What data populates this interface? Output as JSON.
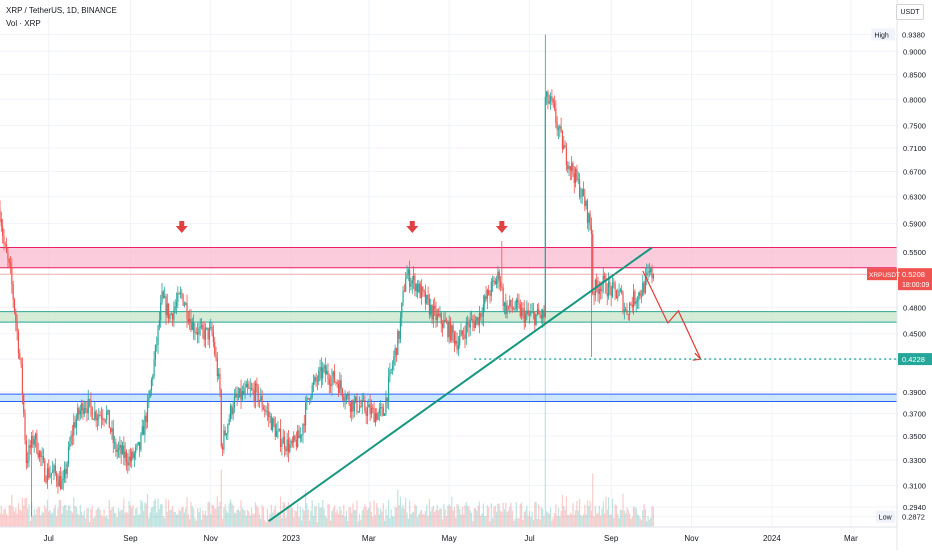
{
  "header": {
    "symbol_line": "XRP / TetherUS, 1D, BINANCE",
    "volume_line": "Vol · XRP"
  },
  "currency_button": "USDT",
  "colors": {
    "up": "#26a69a",
    "down": "#ef5350",
    "resistance_fill": "#f8bbd0",
    "resistance_line": "#e91e63",
    "support_fill": "#c8e6c9",
    "support_line": "#26a69a",
    "blue_zone": "#bbdefb",
    "blue_line": "#2962ff",
    "trendline": "#14967f",
    "arrow": "#e53935",
    "price_badge": "#ef5350",
    "target_badge": "#26a69a"
  },
  "chart_data": {
    "type": "candlestick",
    "y_scale": "log",
    "ylim": [
      0.28,
      0.96
    ],
    "y_ticks": [
      "0.9380",
      "0.9000",
      "0.8500",
      "0.8000",
      "0.7500",
      "0.7100",
      "0.6700",
      "0.6300",
      "0.5900",
      "0.5500",
      "0.5208",
      "0.4800",
      "0.4500",
      "0.4228",
      "0.3900",
      "0.3700",
      "0.3500",
      "0.3300",
      "0.3100",
      "0.2940",
      "0.2872"
    ],
    "x_ticks": [
      "Jul",
      "Sep",
      "Nov",
      "2023",
      "Mar",
      "May",
      "Jul",
      "Sep",
      "Nov",
      "2024",
      "Mar"
    ],
    "x_range": [
      "2022-05-25",
      "2024-04-05"
    ],
    "tick_dates": [
      "2022-07-01",
      "2022-09-01",
      "2022-11-01",
      "2023-01-01",
      "2023-03-01",
      "2023-05-01",
      "2023-07-01",
      "2023-09-01",
      "2023-11-01",
      "2024-01-01",
      "2024-03-01"
    ],
    "high_label": "High",
    "high_value": "0.9380",
    "low_label": "Low",
    "low_value": "0.2872",
    "current_symbol": "XRPUSDT",
    "current_price": "0.5208",
    "countdown": "18:00:09",
    "target_price": "0.4228",
    "zones": [
      {
        "name": "resistance",
        "top": 0.556,
        "bottom": 0.529
      },
      {
        "name": "support",
        "top": 0.475,
        "bottom": 0.463
      },
      {
        "name": "blue",
        "top": 0.388,
        "bottom": 0.381
      }
    ],
    "trendline": [
      [
        "2022-12-15",
        0.284
      ],
      [
        "2023-10-02",
        0.556
      ]
    ],
    "markers": [
      "2022-10-10",
      "2023-04-03",
      "2023-06-10"
    ],
    "projection": [
      [
        "2023-09-25",
        0.525
      ],
      [
        "2023-10-14",
        0.462
      ],
      [
        "2023-10-22",
        0.476
      ],
      [
        "2023-11-08",
        0.4228
      ]
    ],
    "price_path": [
      [
        "2022-05-25",
        0.61
      ],
      [
        "2022-05-28",
        0.56
      ],
      [
        "2022-06-02",
        0.52
      ],
      [
        "2022-06-10",
        0.41
      ],
      [
        "2022-06-14",
        0.33
      ],
      [
        "2022-06-20",
        0.35
      ],
      [
        "2022-06-28",
        0.32
      ],
      [
        "2022-07-05",
        0.32
      ],
      [
        "2022-07-12",
        0.31
      ],
      [
        "2022-07-20",
        0.36
      ],
      [
        "2022-07-28",
        0.38
      ],
      [
        "2022-08-05",
        0.37
      ],
      [
        "2022-08-14",
        0.37
      ],
      [
        "2022-08-20",
        0.34
      ],
      [
        "2022-09-01",
        0.33
      ],
      [
        "2022-09-08",
        0.34
      ],
      [
        "2022-09-15",
        0.38
      ],
      [
        "2022-09-21",
        0.44
      ],
      [
        "2022-09-25",
        0.49
      ],
      [
        "2022-10-01",
        0.47
      ],
      [
        "2022-10-10",
        0.495
      ],
      [
        "2022-10-18",
        0.46
      ],
      [
        "2022-10-25",
        0.45
      ],
      [
        "2022-11-02",
        0.45
      ],
      [
        "2022-11-08",
        0.39
      ],
      [
        "2022-11-09",
        0.34
      ],
      [
        "2022-11-18",
        0.38
      ],
      [
        "2022-11-28",
        0.39
      ],
      [
        "2022-12-05",
        0.39
      ],
      [
        "2022-12-14",
        0.37
      ],
      [
        "2022-12-22",
        0.35
      ],
      [
        "2023-01-01",
        0.34
      ],
      [
        "2023-01-08",
        0.35
      ],
      [
        "2023-01-15",
        0.39
      ],
      [
        "2023-01-25",
        0.41
      ],
      [
        "2023-02-05",
        0.4
      ],
      [
        "2023-02-15",
        0.38
      ],
      [
        "2023-02-25",
        0.375
      ],
      [
        "2023-03-05",
        0.37
      ],
      [
        "2023-03-12",
        0.37
      ],
      [
        "2023-03-18",
        0.41
      ],
      [
        "2023-03-24",
        0.45
      ],
      [
        "2023-03-29",
        0.52
      ],
      [
        "2023-04-05",
        0.51
      ],
      [
        "2023-04-12",
        0.49
      ],
      [
        "2023-04-20",
        0.47
      ],
      [
        "2023-04-28",
        0.46
      ],
      [
        "2023-05-08",
        0.44
      ],
      [
        "2023-05-15",
        0.46
      ],
      [
        "2023-05-22",
        0.465
      ],
      [
        "2023-06-01",
        0.5
      ],
      [
        "2023-06-08",
        0.52
      ],
      [
        "2023-06-12",
        0.48
      ],
      [
        "2023-06-20",
        0.48
      ],
      [
        "2023-06-28",
        0.47
      ],
      [
        "2023-07-05",
        0.47
      ],
      [
        "2023-07-12",
        0.47
      ],
      [
        "2023-07-13",
        0.8
      ],
      [
        "2023-07-18",
        0.79
      ],
      [
        "2023-07-22",
        0.75
      ],
      [
        "2023-07-28",
        0.7
      ],
      [
        "2023-08-05",
        0.66
      ],
      [
        "2023-08-12",
        0.62
      ],
      [
        "2023-08-17",
        0.58
      ],
      [
        "2023-08-18",
        0.5
      ],
      [
        "2023-08-25",
        0.51
      ],
      [
        "2023-09-01",
        0.5
      ],
      [
        "2023-09-08",
        0.495
      ],
      [
        "2023-09-12",
        0.475
      ],
      [
        "2023-09-18",
        0.49
      ],
      [
        "2023-09-24",
        0.5
      ],
      [
        "2023-09-30",
        0.52
      ],
      [
        "2023-10-03",
        0.5208
      ]
    ]
  }
}
